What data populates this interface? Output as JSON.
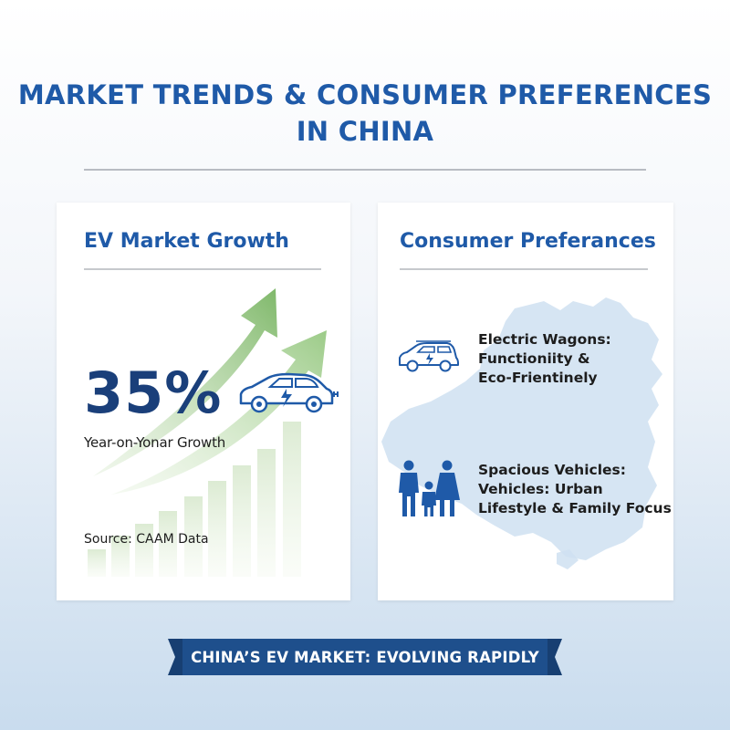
{
  "header": {
    "title_line1": "MARKET TRENDS & CONSUMER PREFERENCES",
    "title_line2": "IN CHINA"
  },
  "growth_card": {
    "title": "EV Market Growth",
    "stat_value": "35%",
    "stat_caption": "Year-on-Yonar Growth",
    "source": "Source: CAAM Data",
    "icons": [
      "growth-arrow-icon",
      "electric-car-plug-icon",
      "bar-chart-icon"
    ]
  },
  "preferences_card": {
    "title": "Consumer Preferances",
    "items": [
      {
        "icon": "electric-wagon-icon",
        "lines": [
          "Electric Wagons:",
          "Functioniity &",
          "Eco-Frientinely"
        ]
      },
      {
        "icon": "family-icon",
        "lines": [
          "Spacious Vehicles:",
          "Vehicles: Urban",
          "Lifestyle & Family Focus"
        ]
      }
    ],
    "background_icon": "china-map-icon"
  },
  "banner": {
    "text": "CHINA’S EV MARKET: EVOLVING RAPIDLY"
  },
  "colors": {
    "title_blue": "#1f5aa8",
    "stat_navy": "#1a3f7a",
    "banner_navy": "#1e4f8c",
    "arrow_green": "#8fc07a",
    "map_blue": "#c8ddef"
  }
}
